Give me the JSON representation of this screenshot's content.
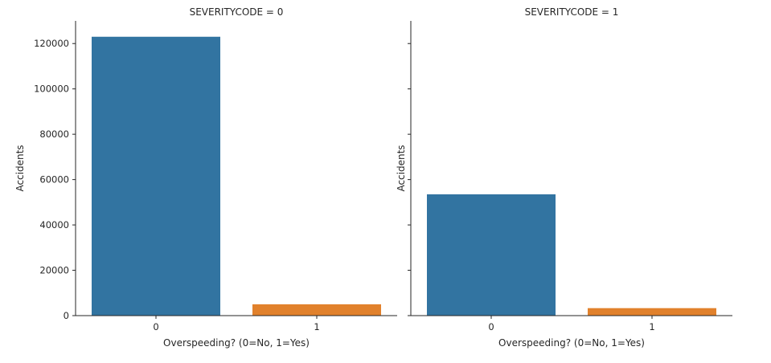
{
  "chart_data": {
    "type": "bar",
    "layout": "facet-grid-1x2",
    "sharey": true,
    "grid": false,
    "legend": "none",
    "ylim": [
      0,
      130000
    ],
    "yticks": [
      0,
      20000,
      40000,
      60000,
      80000,
      100000,
      120000
    ],
    "xlabel": "Overspeeding? (0=No, 1=Yes)",
    "ylabel": "Accidents",
    "categories": [
      "0",
      "1"
    ],
    "colors": [
      "#3274a1",
      "#e1812c"
    ],
    "panels": [
      {
        "title": "SEVERITYCODE = 0",
        "values": [
          123000,
          5000
        ]
      },
      {
        "title": "SEVERITYCODE = 1",
        "values": [
          53500,
          3300
        ]
      }
    ]
  }
}
